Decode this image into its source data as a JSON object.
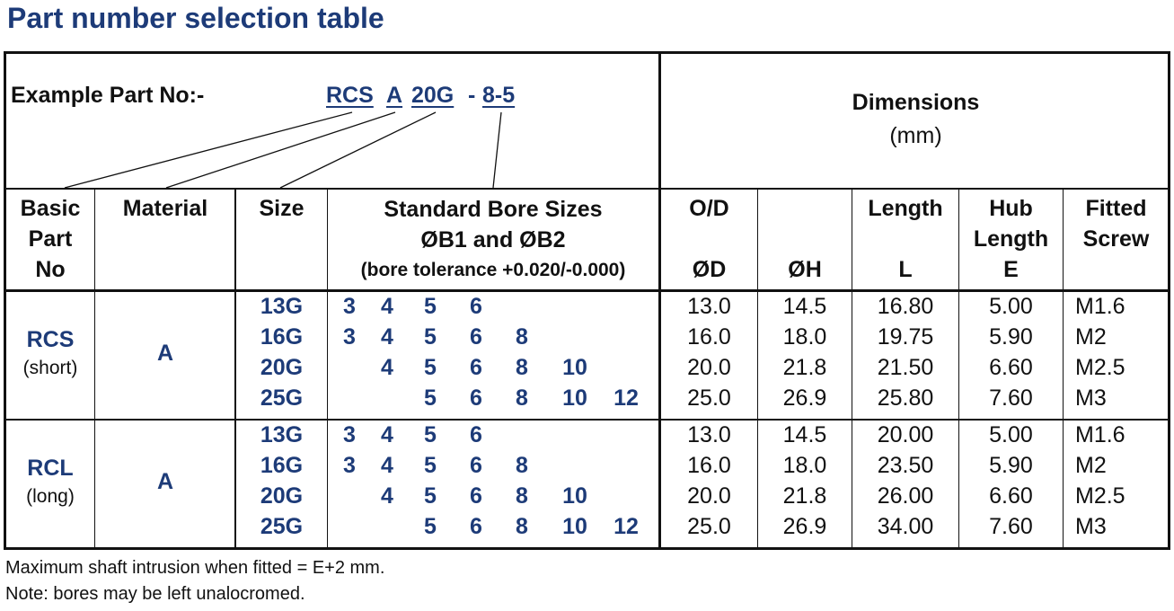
{
  "title": "Part number selection table",
  "example": {
    "label": "Example Part No:-",
    "code1": "RCS",
    "code2": "A",
    "code3": "20G",
    "dash": "-",
    "code4": "8-5"
  },
  "dimensions": {
    "title": "Dimensions",
    "unit": "(mm)"
  },
  "headers": {
    "basic": [
      "Basic",
      "Part",
      "No"
    ],
    "material": "Material",
    "size": "Size",
    "bore": [
      "Standard Bore Sizes",
      "ØB1 and ØB2",
      "(bore tolerance +0.020/-0.000)"
    ],
    "od": [
      "O/D",
      "ØD"
    ],
    "h": "ØH",
    "length": [
      "Length",
      "L"
    ],
    "hub": [
      "Hub",
      "Length",
      "E"
    ],
    "screw": [
      "Fitted",
      "Screw"
    ]
  },
  "groups": [
    {
      "part": "RCS",
      "sub": "(short)",
      "material": "A",
      "rows": [
        {
          "size": "13G",
          "bores": [
            "3",
            "4",
            "5",
            "6",
            "",
            "",
            ""
          ],
          "od": "13.0",
          "h": "14.5",
          "l": "16.80",
          "e": "5.00",
          "screw": "M1.6"
        },
        {
          "size": "16G",
          "bores": [
            "3",
            "4",
            "5",
            "6",
            "8",
            "",
            ""
          ],
          "od": "16.0",
          "h": "18.0",
          "l": "19.75",
          "e": "5.90",
          "screw": "M2"
        },
        {
          "size": "20G",
          "bores": [
            "",
            "4",
            "5",
            "6",
            "8",
            "10",
            ""
          ],
          "od": "20.0",
          "h": "21.8",
          "l": "21.50",
          "e": "6.60",
          "screw": "M2.5"
        },
        {
          "size": "25G",
          "bores": [
            "",
            "",
            "5",
            "6",
            "8",
            "10",
            "12"
          ],
          "od": "25.0",
          "h": "26.9",
          "l": "25.80",
          "e": "7.60",
          "screw": "M3"
        }
      ]
    },
    {
      "part": "RCL",
      "sub": "(long)",
      "material": "A",
      "rows": [
        {
          "size": "13G",
          "bores": [
            "3",
            "4",
            "5",
            "6",
            "",
            "",
            ""
          ],
          "od": "13.0",
          "h": "14.5",
          "l": "20.00",
          "e": "5.00",
          "screw": "M1.6"
        },
        {
          "size": "16G",
          "bores": [
            "3",
            "4",
            "5",
            "6",
            "8",
            "",
            ""
          ],
          "od": "16.0",
          "h": "18.0",
          "l": "23.50",
          "e": "5.90",
          "screw": "M2"
        },
        {
          "size": "20G",
          "bores": [
            "",
            "4",
            "5",
            "6",
            "8",
            "10",
            ""
          ],
          "od": "20.0",
          "h": "21.8",
          "l": "26.00",
          "e": "6.60",
          "screw": "M2.5"
        },
        {
          "size": "25G",
          "bores": [
            "",
            "",
            "5",
            "6",
            "8",
            "10",
            "12"
          ],
          "od": "25.0",
          "h": "26.9",
          "l": "34.00",
          "e": "7.60",
          "screw": "M3"
        }
      ]
    }
  ],
  "notes": [
    "Maximum shaft intrusion when fitted = E+2 mm.",
    "Note: bores may be left unalocromed."
  ]
}
